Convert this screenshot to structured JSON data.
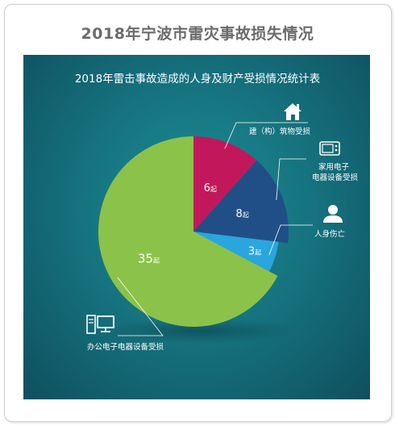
{
  "card_title": "2018年宁波市雷灾事故损失情况",
  "chart_data": {
    "type": "pie",
    "title": "2018年雷击事故造成的人身及财产受损情况统计表",
    "unit": "起",
    "slices": [
      {
        "label": "建（构）筑物受损",
        "value": 6,
        "color": "#c2185b",
        "icon": "house-icon"
      },
      {
        "label": "家用电子电器设备受损",
        "label_lines": [
          "家用电子",
          "电器设备受损"
        ],
        "value": 8,
        "color": "#1f4f86",
        "icon": "microwave-icon"
      },
      {
        "label": "人身伤亡",
        "value": 3,
        "color": "#2aa6df",
        "icon": "person-icon"
      },
      {
        "label": "办公电子电器设备受损",
        "value": 35,
        "color": "#8bc34a",
        "icon": "computer-icon"
      }
    ]
  }
}
